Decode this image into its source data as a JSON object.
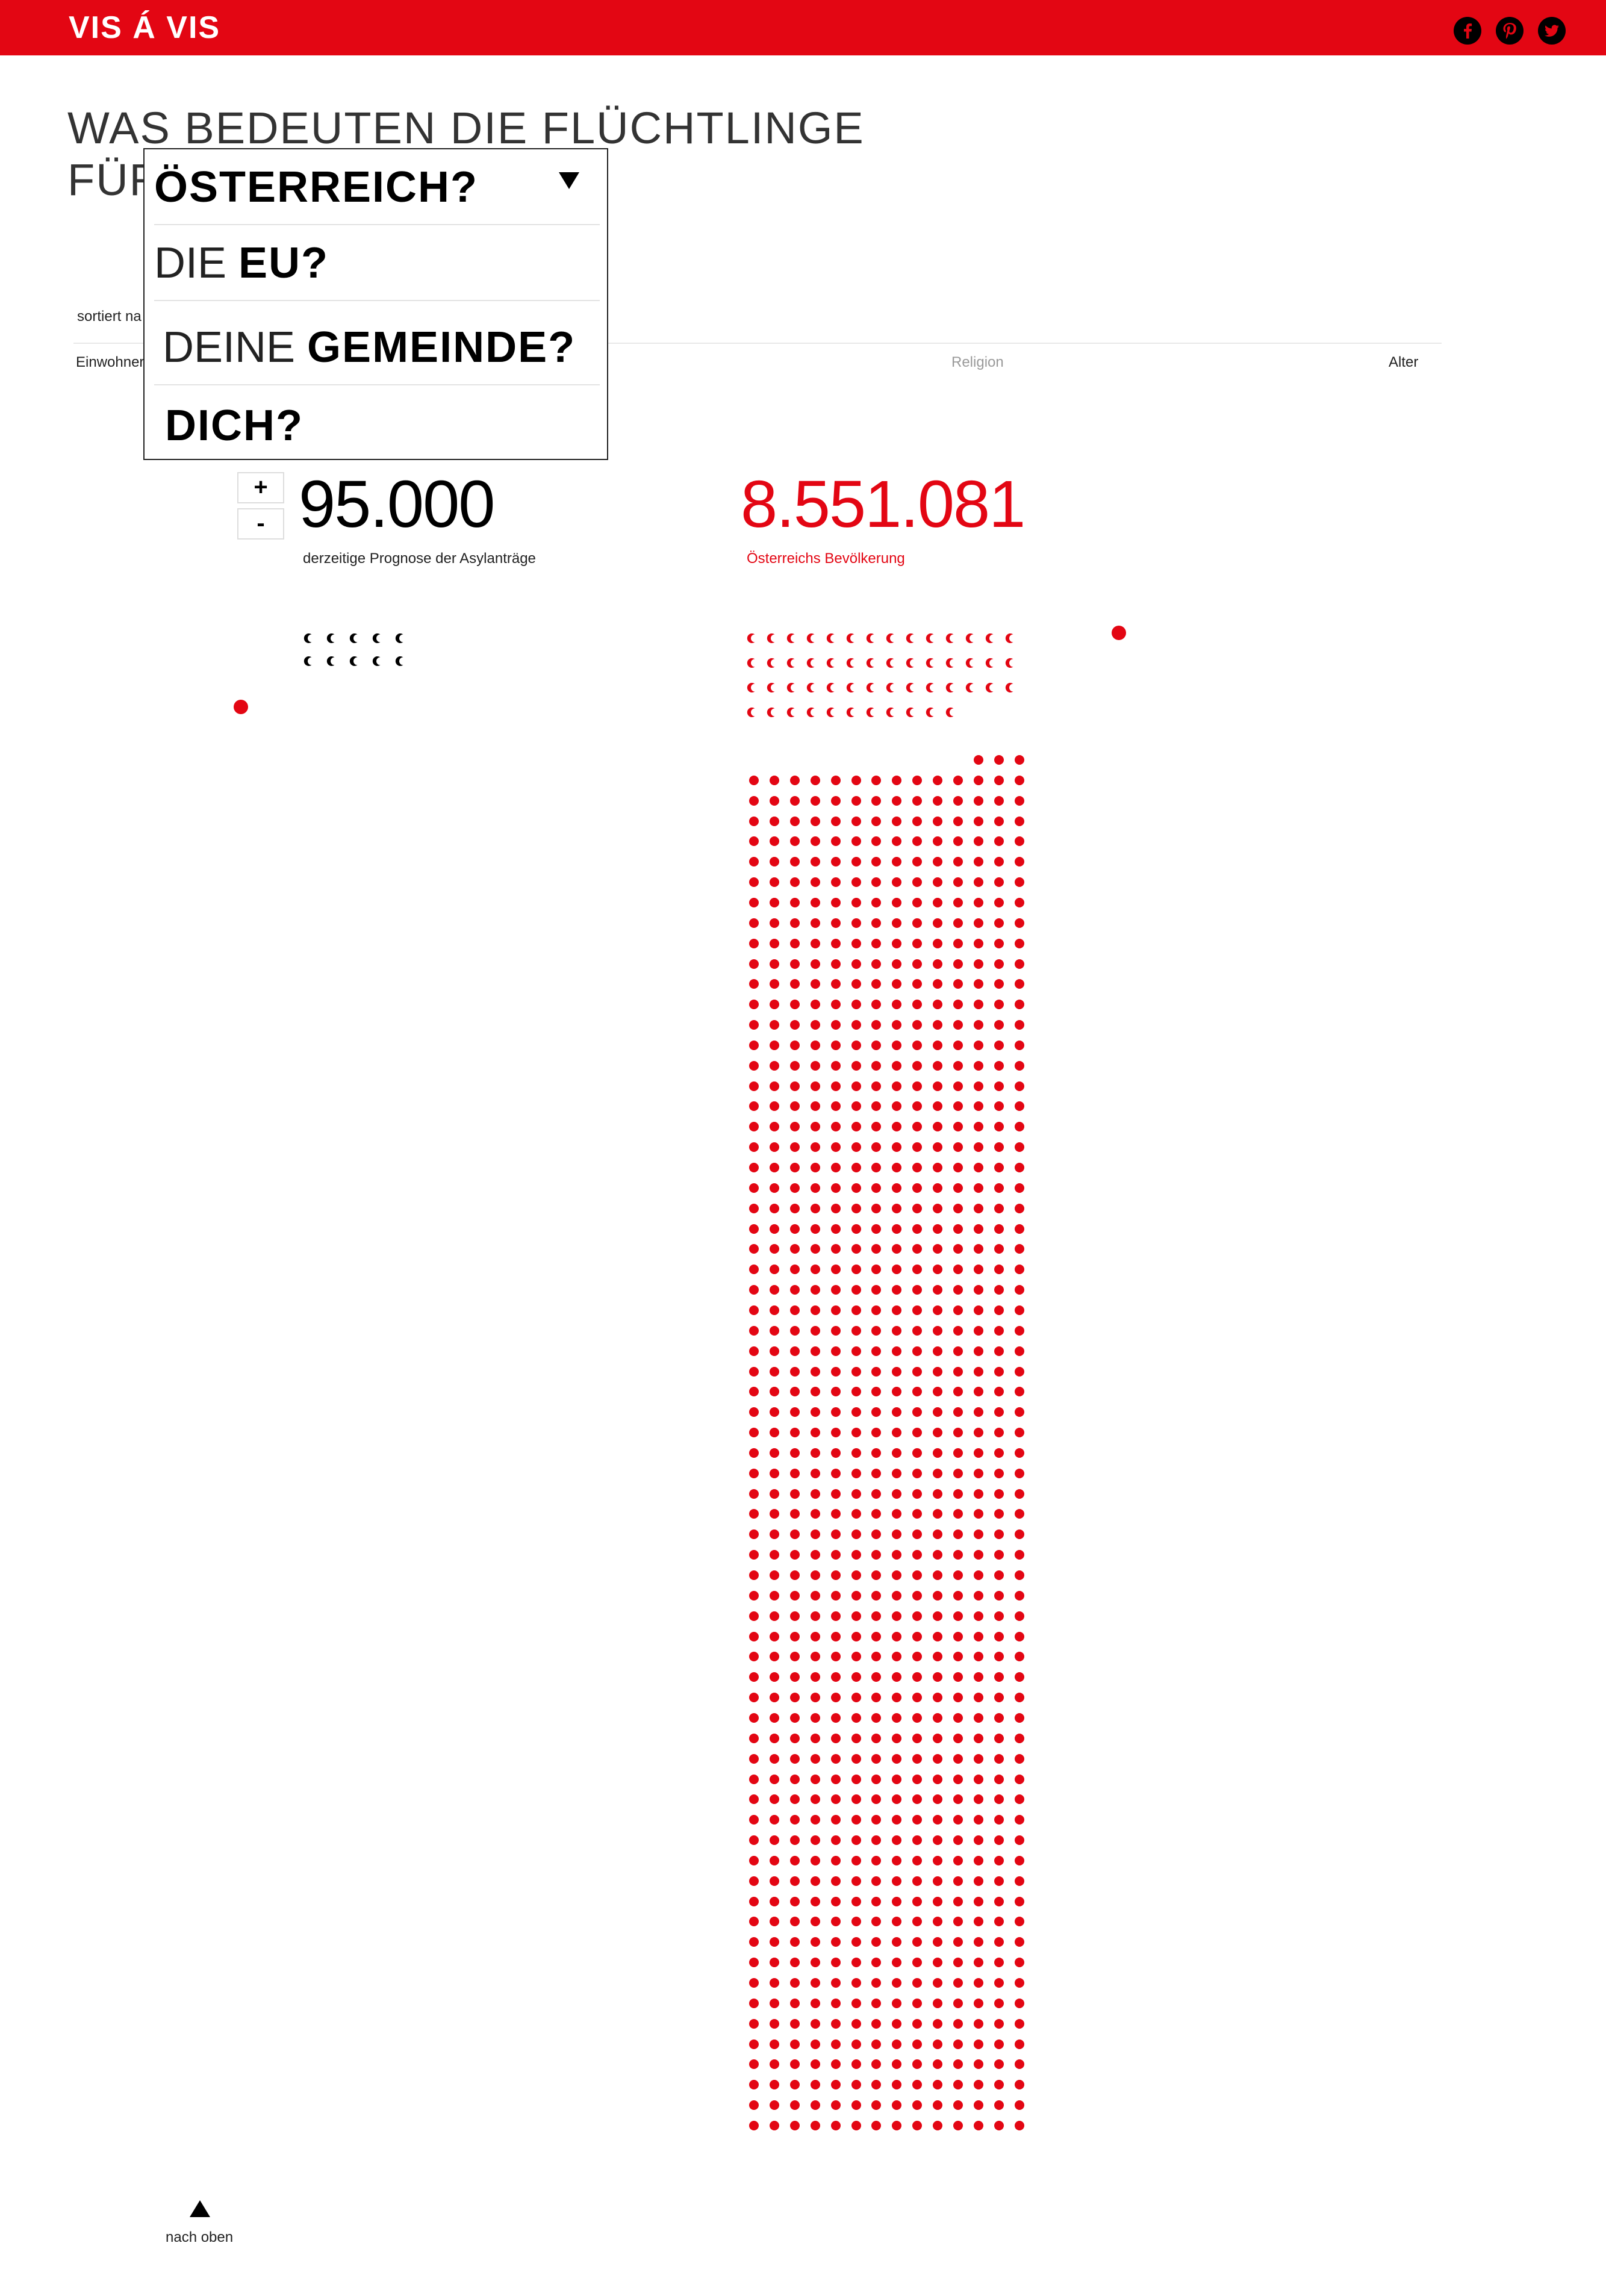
{
  "header": {
    "brand": "VIS Á VIS",
    "social": [
      "facebook-icon",
      "pinterest-icon",
      "twitter-icon"
    ]
  },
  "headline": {
    "line1": "WAS BEDEUTEN DIE FLÜCHTLINGE",
    "line2_prefix": "FÜR"
  },
  "dropdown": {
    "options": [
      {
        "plain": "",
        "bold": "ÖSTERREICH?",
        "selected": true
      },
      {
        "plain": "DIE ",
        "bold": "EU?",
        "selected": false
      },
      {
        "plain": "DEINE ",
        "bold": "GEMEINDE?",
        "selected": false
      },
      {
        "plain": "",
        "bold": "DICH?",
        "selected": false
      }
    ]
  },
  "sort": {
    "label": "sortiert na",
    "options": [
      {
        "label": "Einwohner",
        "active": true
      },
      {
        "label": "Religion",
        "active": false
      },
      {
        "label": "Alter",
        "active": true
      }
    ]
  },
  "stepper": {
    "plus": "+",
    "minus": "-"
  },
  "refugees": {
    "value": "95.000",
    "caption": "derzeitige Prognose der Asylanträge"
  },
  "population": {
    "value": "8.551.081",
    "caption": "Österreichs Bevölkerung"
  },
  "footer": {
    "back_to_top": "nach oben"
  },
  "colors": {
    "accent": "#e30613",
    "text": "#1a1a1a",
    "muted": "#9a9a9a"
  }
}
